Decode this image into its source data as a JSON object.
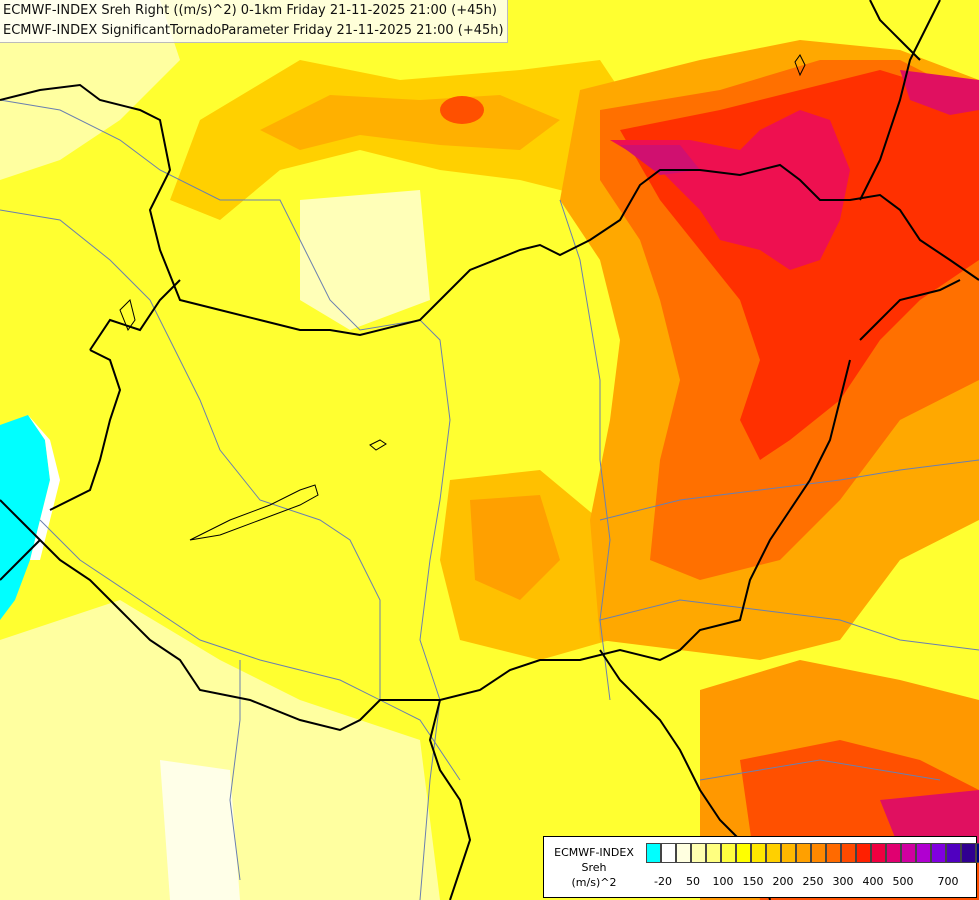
{
  "title": {
    "line1": "ECMWF-INDEX Sreh Right ((m/s)^2) 0-1km Friday 21-11-2025 21:00 (+45h)",
    "line2": "ECMWF-INDEX SignificantTornadoParameter Friday 21-11-2025 21:00 (+45h)"
  },
  "legend": {
    "model": "ECMWF-INDEX",
    "variable": "Sreh",
    "unit": "(m/s)^2",
    "colors": [
      "#00ffff",
      "#ffffff",
      "#ffffe0",
      "#ffffb0",
      "#ffff80",
      "#ffff40",
      "#ffff00",
      "#ffe800",
      "#ffd000",
      "#ffb800",
      "#ffa000",
      "#ff8800",
      "#ff6a00",
      "#ff4a00",
      "#ff2000",
      "#f00040",
      "#e00070",
      "#d000a0",
      "#b000d0",
      "#8000e0",
      "#5000c0",
      "#300090",
      "#000080"
    ],
    "ticks": [
      "-20",
      "50",
      "100",
      "150",
      "200",
      "250",
      "300",
      "400",
      "500",
      "700"
    ]
  },
  "palette": {
    "background": "#ffffd0",
    "border_color": "#000000",
    "river_color": "#6a7fb0"
  }
}
